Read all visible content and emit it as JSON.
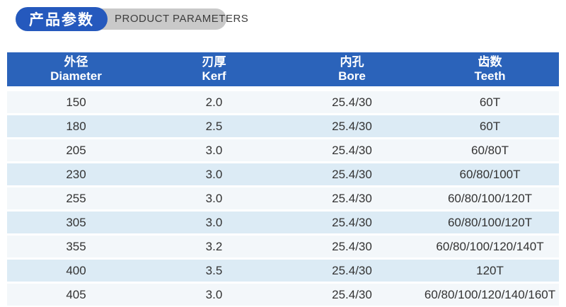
{
  "header_badge": {
    "title_cn": "产品参数",
    "title_en": "PRODUCT PARAMETERS"
  },
  "colors": {
    "badge_blue": "#2559bd",
    "badge_gray": "#c9c9c9",
    "table_header_blue": "#2b63ba",
    "row_light": "#f3f7fa",
    "row_alt": "#dcebf5",
    "cell_text": "#333333"
  },
  "table": {
    "columns": [
      {
        "cn": "外径",
        "en": "Diameter"
      },
      {
        "cn": "刃厚",
        "en": "Kerf"
      },
      {
        "cn": "内孔",
        "en": "Bore"
      },
      {
        "cn": "齿数",
        "en": "Teeth"
      }
    ],
    "rows": [
      [
        "150",
        "2.0",
        "25.4/30",
        "60T"
      ],
      [
        "180",
        "2.5",
        "25.4/30",
        "60T"
      ],
      [
        "205",
        "3.0",
        "25.4/30",
        "60/80T"
      ],
      [
        "230",
        "3.0",
        "25.4/30",
        "60/80/100T"
      ],
      [
        "255",
        "3.0",
        "25.4/30",
        "60/80/100/120T"
      ],
      [
        "305",
        "3.0",
        "25.4/30",
        "60/80/100/120T"
      ],
      [
        "355",
        "3.2",
        "25.4/30",
        "60/80/100/120/140T"
      ],
      [
        "400",
        "3.5",
        "25.4/30",
        "120T"
      ],
      [
        "405",
        "3.0",
        "25.4/30",
        "60/80/100/120/140/160T"
      ]
    ]
  }
}
